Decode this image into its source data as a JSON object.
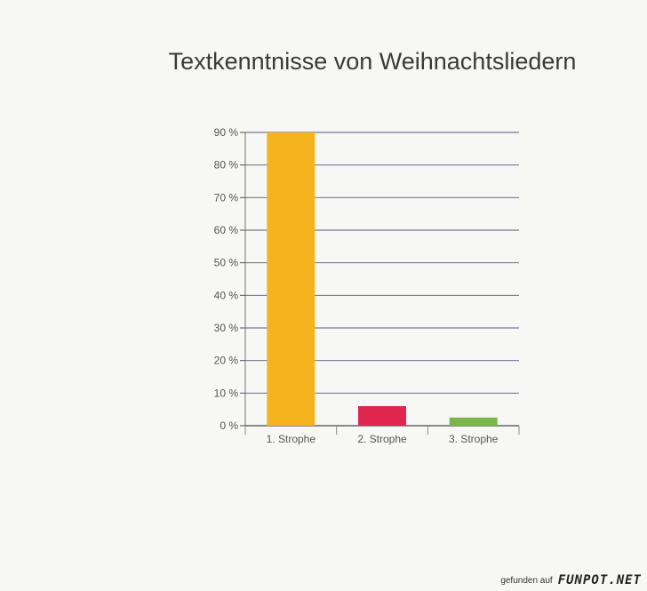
{
  "chart_data": {
    "type": "bar",
    "title": "Textkenntnisse von Weihnachtsliedern",
    "categories": [
      "1. Strophe",
      "2. Strophe",
      "3. Strophe"
    ],
    "values": [
      90,
      6,
      2.5
    ],
    "colors": [
      "#f5b31e",
      "#e0264f",
      "#7ab648"
    ],
    "yticks": [
      0,
      10,
      20,
      30,
      40,
      50,
      60,
      70,
      80,
      90
    ],
    "ytick_labels": [
      "0 %",
      "10 %",
      "20 %",
      "30 %",
      "40 %",
      "50 %",
      "60 %",
      "70 %",
      "80 %",
      "90 %"
    ],
    "ylim": [
      0,
      90
    ],
    "xlabel": "",
    "ylabel": "",
    "grid": true
  },
  "footer": {
    "prefix": "gefunden auf",
    "brand": "FUNPOT.NET"
  }
}
